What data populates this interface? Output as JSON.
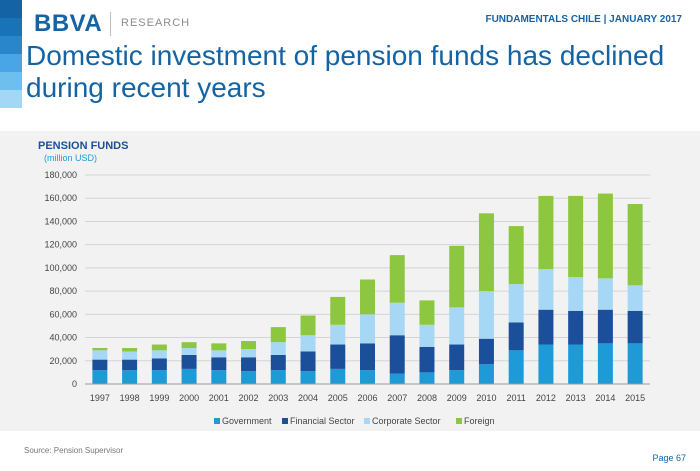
{
  "header": {
    "brand": "BBVA",
    "brand_sub": "RESEARCH",
    "report": "FUNDAMENTALS CHILE | JANUARY 2017",
    "headline": "Domestic investment of pension funds has declined during recent years",
    "stripe_colors": [
      "#1464a5",
      "#1973b8",
      "#2a86ca",
      "#49a5e6",
      "#6fbfee",
      "#a4d6f5"
    ]
  },
  "colors": {
    "government": "#1e9bd7",
    "financial": "#1c4f9a",
    "corporate": "#a6d8f5",
    "foreign": "#8dc63f",
    "brand": "#1464a5",
    "panel": "#f2f2f2"
  },
  "chart_data": {
    "type": "bar",
    "stacked": true,
    "title": "PENSION FUNDS",
    "subtitle": "(million USD)",
    "categories": [
      "1997",
      "1998",
      "1999",
      "2000",
      "2001",
      "2002",
      "2003",
      "2004",
      "2005",
      "2006",
      "2007",
      "2008",
      "2009",
      "2010",
      "2011",
      "2012",
      "2013",
      "2014",
      "2015"
    ],
    "ylim": [
      0,
      180000
    ],
    "yticks": [
      0,
      20000,
      40000,
      60000,
      80000,
      100000,
      120000,
      140000,
      160000,
      180000
    ],
    "ytick_labels": [
      "0",
      "20,000",
      "40,000",
      "60,000",
      "80,000",
      "100,000",
      "120,000",
      "140,000",
      "160,000",
      "180,000"
    ],
    "grid": true,
    "legend_position": "bottom",
    "series": [
      {
        "name": "Government",
        "color": "#1e9bd7",
        "values": [
          12000,
          12000,
          12000,
          13000,
          12000,
          11000,
          12000,
          11000,
          13000,
          12000,
          9000,
          10000,
          12000,
          17000,
          29000,
          34000,
          34000,
          35000,
          35000
        ]
      },
      {
        "name": "Financial Sector",
        "color": "#1c4f9a",
        "values": [
          9000,
          9000,
          10000,
          12000,
          11000,
          12000,
          13000,
          17000,
          21000,
          23000,
          33000,
          22000,
          22000,
          22000,
          24000,
          30000,
          29000,
          29000,
          28000
        ]
      },
      {
        "name": "Corporate Sector",
        "color": "#a6d8f5",
        "values": [
          8000,
          7000,
          7000,
          6000,
          6000,
          7000,
          11000,
          14000,
          17000,
          25000,
          28000,
          19000,
          32000,
          41000,
          33000,
          35000,
          29000,
          27000,
          22000
        ]
      },
      {
        "name": "Foreign",
        "color": "#8dc63f",
        "values": [
          2000,
          3000,
          5000,
          5000,
          6000,
          7000,
          13000,
          17000,
          24000,
          30000,
          41000,
          21000,
          53000,
          67000,
          50000,
          63000,
          70000,
          73000,
          70000
        ]
      }
    ]
  },
  "footer": {
    "source": "Source: Pension Supervisor",
    "page": "Page 67"
  }
}
